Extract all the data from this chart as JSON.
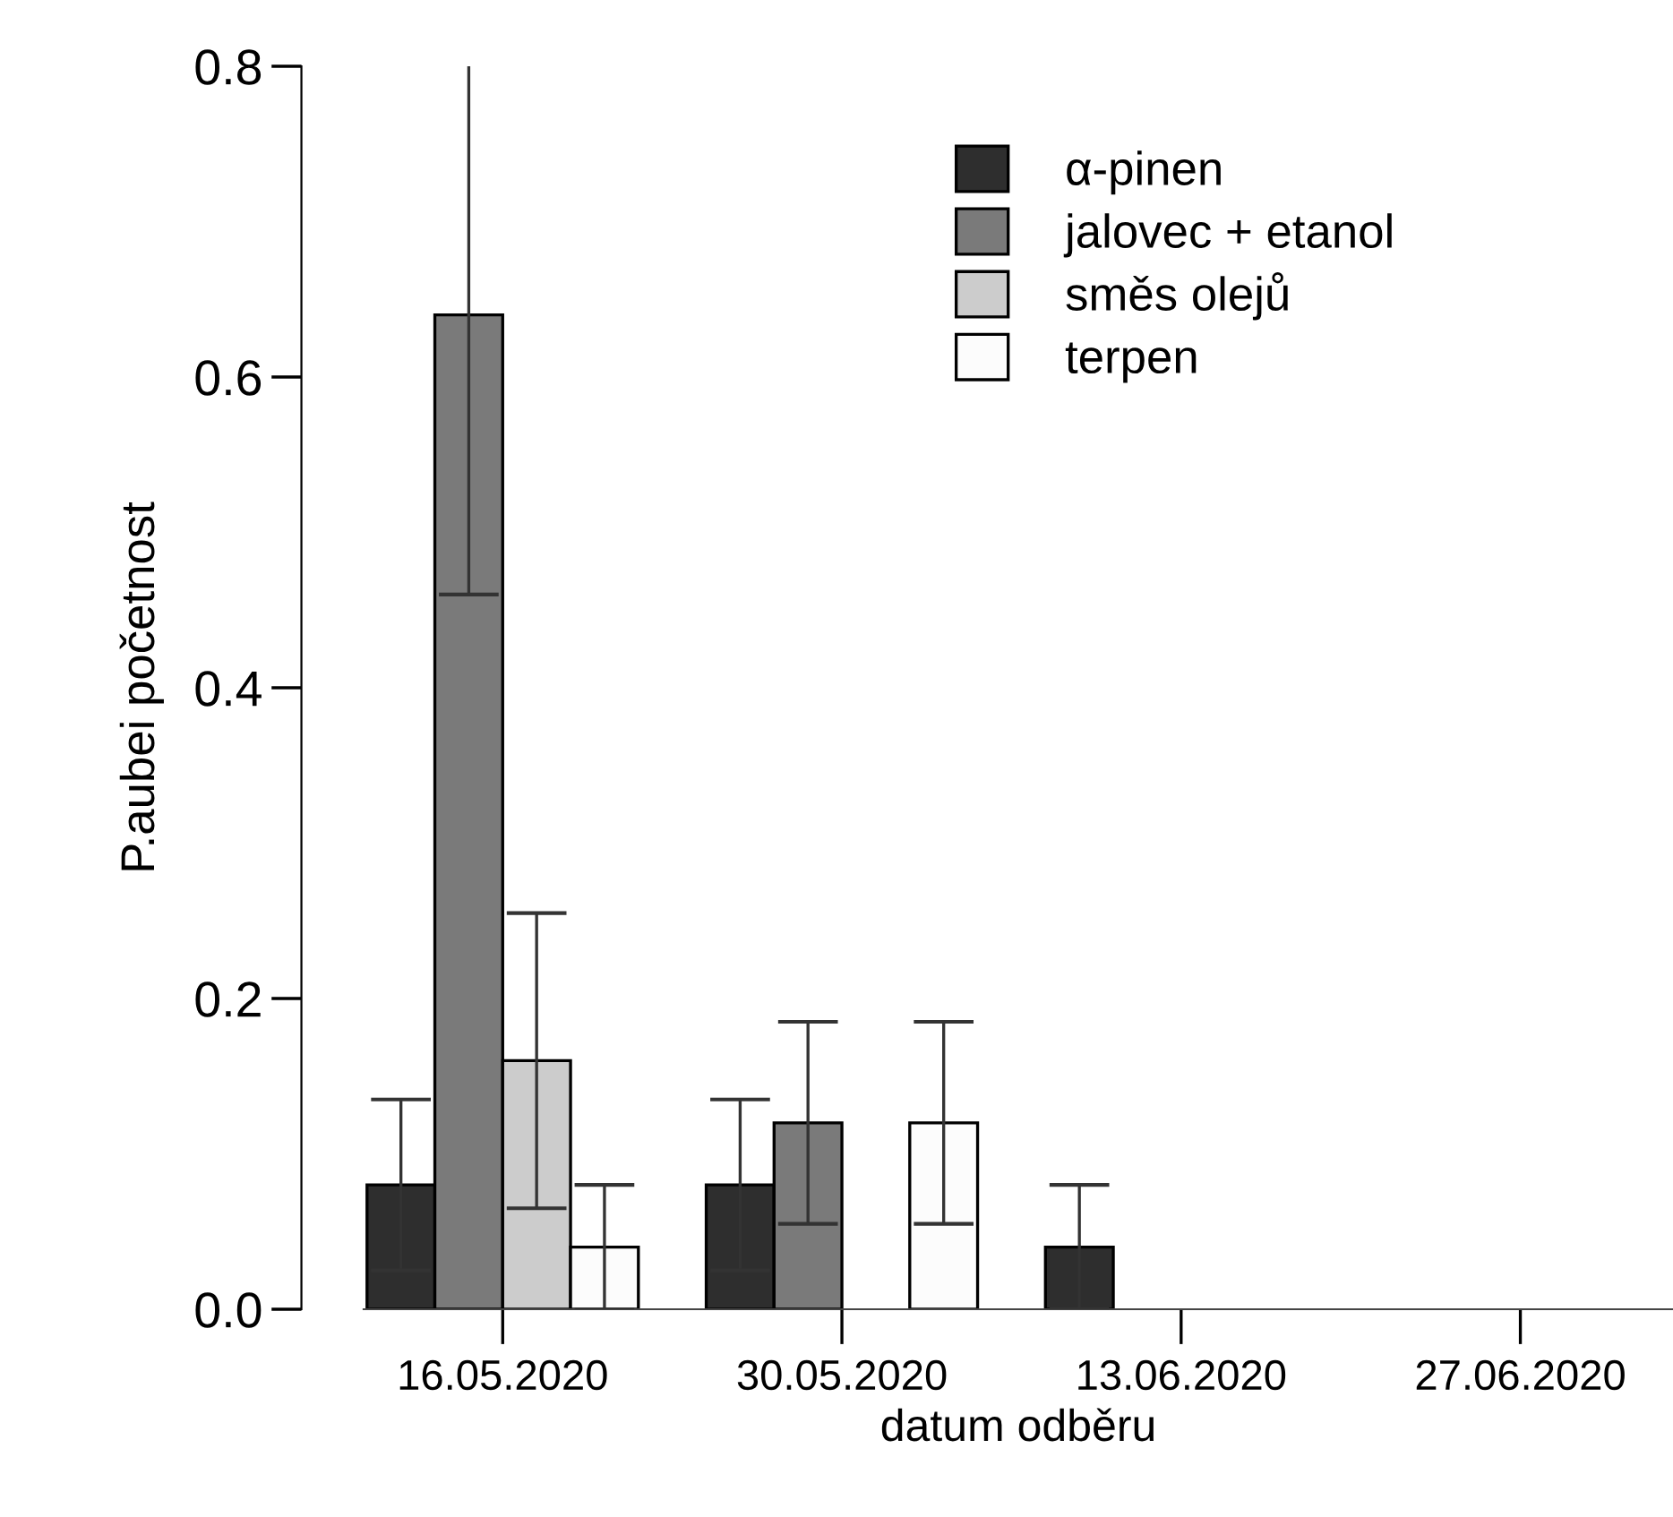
{
  "chart_data": {
    "type": "bar",
    "xlabel": "datum odběru",
    "ylabel": "P.aubei početnost",
    "categories": [
      "16.05.2020",
      "30.05.2020",
      "13.06.2020",
      "27.06.2020"
    ],
    "series": [
      {
        "name": "α-pinen",
        "color": "#2e2e2e",
        "values": [
          0.08,
          0.08,
          0.04,
          0
        ],
        "errors": [
          0.055,
          0.055,
          0.04,
          null
        ]
      },
      {
        "name": "jalovec + etanol",
        "color": "#7a7a7a",
        "values": [
          0.64,
          0.12,
          0,
          0
        ],
        "errors": [
          0.18,
          0.065,
          null,
          null
        ]
      },
      {
        "name": "směs olejů",
        "color": "#cccccc",
        "values": [
          0.16,
          0,
          0,
          0
        ],
        "errors": [
          0.095,
          null,
          null,
          null
        ]
      },
      {
        "name": "terpen",
        "color": "#fcfcfc",
        "values": [
          0.04,
          0.12,
          0,
          0
        ],
        "errors": [
          0.04,
          0.065,
          null,
          null
        ]
      }
    ],
    "ylim": [
      0,
      0.8
    ],
    "yticks": [
      {
        "value": 0,
        "label": "0.0"
      },
      0.2,
      0.4,
      0.6,
      0.8
    ],
    "grid": false,
    "legend": "top"
  }
}
